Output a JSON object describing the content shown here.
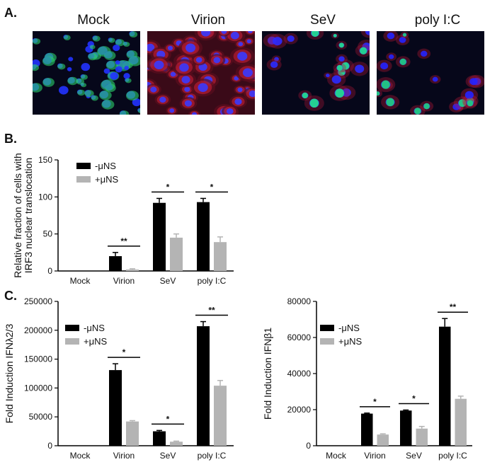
{
  "panels": {
    "a": {
      "letter": "A.",
      "images": [
        {
          "label": "Mock",
          "tone": "mock",
          "colors": [
            "#2bd06a",
            "#2233ff",
            "#0d1a2e"
          ]
        },
        {
          "label": "Virion",
          "tone": "virion",
          "colors": [
            "#d0203a",
            "#3a3aff",
            "#5a0d1e"
          ]
        },
        {
          "label": "SeV",
          "tone": "sev",
          "colors": [
            "#23e08a",
            "#2b2bff",
            "#b0163a"
          ]
        },
        {
          "label": "poly I:C",
          "tone": "polyic",
          "colors": [
            "#22d07a",
            "#2424ff",
            "#c01a3a"
          ]
        }
      ]
    },
    "b": {
      "letter": "B."
    },
    "c": {
      "letter": "C."
    }
  },
  "chart_data": [
    {
      "id": "b",
      "type": "bar",
      "categories": [
        "Mock",
        "Virion",
        "SeV",
        "poly I:C"
      ],
      "series": [
        {
          "name": "-μNS",
          "color": "#000000",
          "values": [
            0,
            20,
            92,
            93
          ],
          "errors": [
            0,
            5,
            6,
            5
          ]
        },
        {
          "name": "+μNS",
          "color": "#b4b4b4",
          "values": [
            0,
            2,
            45,
            39
          ],
          "errors": [
            0,
            1,
            5,
            7
          ]
        }
      ],
      "ylabel_lines": [
        "Relative fraction of cells with",
        "IRF3 nuclear translocation"
      ],
      "ylim": [
        0,
        150
      ],
      "yticks": [
        0,
        50,
        100,
        150
      ],
      "ytick_labels": [
        "0",
        "50",
        "100",
        "150"
      ],
      "significance": [
        "",
        "**",
        "*",
        "*"
      ],
      "legend_position": "top-left"
    },
    {
      "id": "c1",
      "type": "bar",
      "categories": [
        "Mock",
        "Virion",
        "SeV",
        "poly I:C"
      ],
      "series": [
        {
          "name": "-μNS",
          "color": "#000000",
          "values": [
            0,
            131000,
            25000,
            207000
          ],
          "errors": [
            0,
            11000,
            1500,
            8000
          ]
        },
        {
          "name": "+μNS",
          "color": "#b4b4b4",
          "values": [
            0,
            42000,
            7000,
            104000
          ],
          "errors": [
            0,
            1500,
            1000,
            9000
          ]
        }
      ],
      "ylabel": "Fold Induction IFNλ2/3",
      "ylim": [
        0,
        250000
      ],
      "yticks": [
        0,
        50000,
        100000,
        150000,
        200000,
        250000
      ],
      "ytick_labels": [
        "0",
        "50000",
        "100000",
        "150000",
        "200000",
        "250000"
      ],
      "significance": [
        "",
        "*",
        "*",
        "**"
      ],
      "legend_position": "top-left"
    },
    {
      "id": "c2",
      "type": "bar",
      "categories": [
        "Mock",
        "Virion",
        "SeV",
        "poly I:C"
      ],
      "series": [
        {
          "name": "-μNS",
          "color": "#000000",
          "values": [
            0,
            17800,
            19500,
            66000
          ],
          "errors": [
            0,
            300,
            300,
            4500
          ]
        },
        {
          "name": "+μNS",
          "color": "#b4b4b4",
          "values": [
            0,
            6200,
            9500,
            26000
          ],
          "errors": [
            0,
            400,
            1200,
            1500
          ]
        }
      ],
      "ylabel": "Fold Induction IFNβ1",
      "ylim": [
        0,
        80000
      ],
      "yticks": [
        0,
        20000,
        40000,
        60000,
        80000
      ],
      "ytick_labels": [
        "0",
        "20000",
        "40000",
        "60000",
        "80000"
      ],
      "significance": [
        "",
        "*",
        "*",
        "**"
      ],
      "legend_position": "top-left"
    }
  ]
}
